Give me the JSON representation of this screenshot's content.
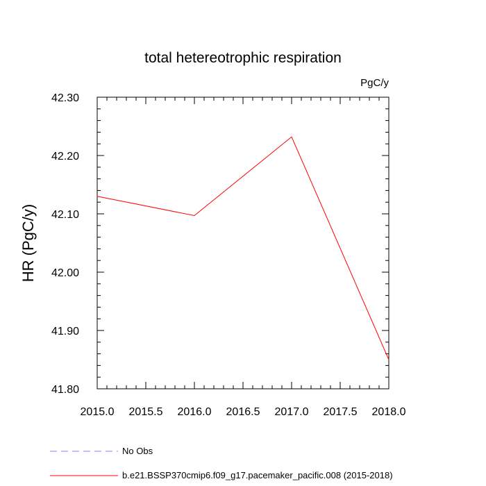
{
  "chart_data": {
    "type": "line",
    "title": "total hetereotrophic respiration",
    "units_label": "PgC/y",
    "ylabel": "HR  (PgC/y)",
    "xlabel": "",
    "xlim": [
      2015.0,
      2018.0
    ],
    "ylim": [
      41.8,
      42.3
    ],
    "x_ticks": [
      "2015.0",
      "2015.5",
      "2016.0",
      "2016.5",
      "2017.0",
      "2017.5",
      "2018.0"
    ],
    "y_ticks": [
      "41.80",
      "41.90",
      "42.00",
      "42.10",
      "42.20",
      "42.30"
    ],
    "series": [
      {
        "name": "b.e21.BSSP370cmip6.f09_g17.pacemaker_pacific.008 (2015-2018)",
        "color": "#ff0000",
        "style": "solid",
        "x": [
          2015,
          2016,
          2017,
          2018
        ],
        "values": [
          42.13,
          42.097,
          42.232,
          41.85
        ]
      }
    ],
    "legend": [
      {
        "label": "No Obs",
        "color": "#8080ff",
        "style": "dashed"
      },
      {
        "label": "b.e21.BSSP370cmip6.f09_g17.pacemaker_pacific.008 (2015-2018)",
        "color": "#ff0000",
        "style": "solid"
      }
    ]
  }
}
